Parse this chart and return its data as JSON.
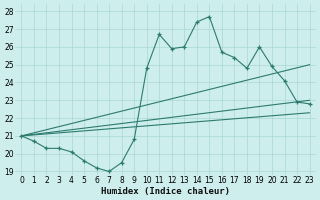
{
  "xlabel": "Humidex (Indice chaleur)",
  "bg_color": "#cdeeed",
  "line_color": "#2d7a6e",
  "grid_color": "#a8d8d5",
  "xlim": [
    -0.5,
    23.5
  ],
  "ylim": [
    18.8,
    28.4
  ],
  "yticks": [
    19,
    20,
    21,
    22,
    23,
    24,
    25,
    26,
    27,
    28
  ],
  "xticks": [
    0,
    1,
    2,
    3,
    4,
    5,
    6,
    7,
    8,
    9,
    10,
    11,
    12,
    13,
    14,
    15,
    16,
    17,
    18,
    19,
    20,
    21,
    22,
    23
  ],
  "main_x": [
    0,
    1,
    2,
    3,
    4,
    5,
    6,
    7,
    8,
    9,
    10,
    11,
    12,
    13,
    14,
    15,
    16,
    17,
    18,
    19,
    20,
    21,
    22,
    23
  ],
  "main_y": [
    21.0,
    20.7,
    20.3,
    20.3,
    20.1,
    19.6,
    19.2,
    19.0,
    19.5,
    20.8,
    24.8,
    26.7,
    25.9,
    26.0,
    27.4,
    27.7,
    25.7,
    25.4,
    24.8,
    26.0,
    24.9,
    24.1,
    22.9,
    22.8
  ],
  "trend1_x": [
    0,
    23
  ],
  "trend1_y": [
    21.0,
    23.0
  ],
  "trend2_x": [
    0,
    23
  ],
  "trend2_y": [
    21.0,
    25.0
  ],
  "trend3_x": [
    0,
    23
  ],
  "trend3_y": [
    21.0,
    22.3
  ]
}
